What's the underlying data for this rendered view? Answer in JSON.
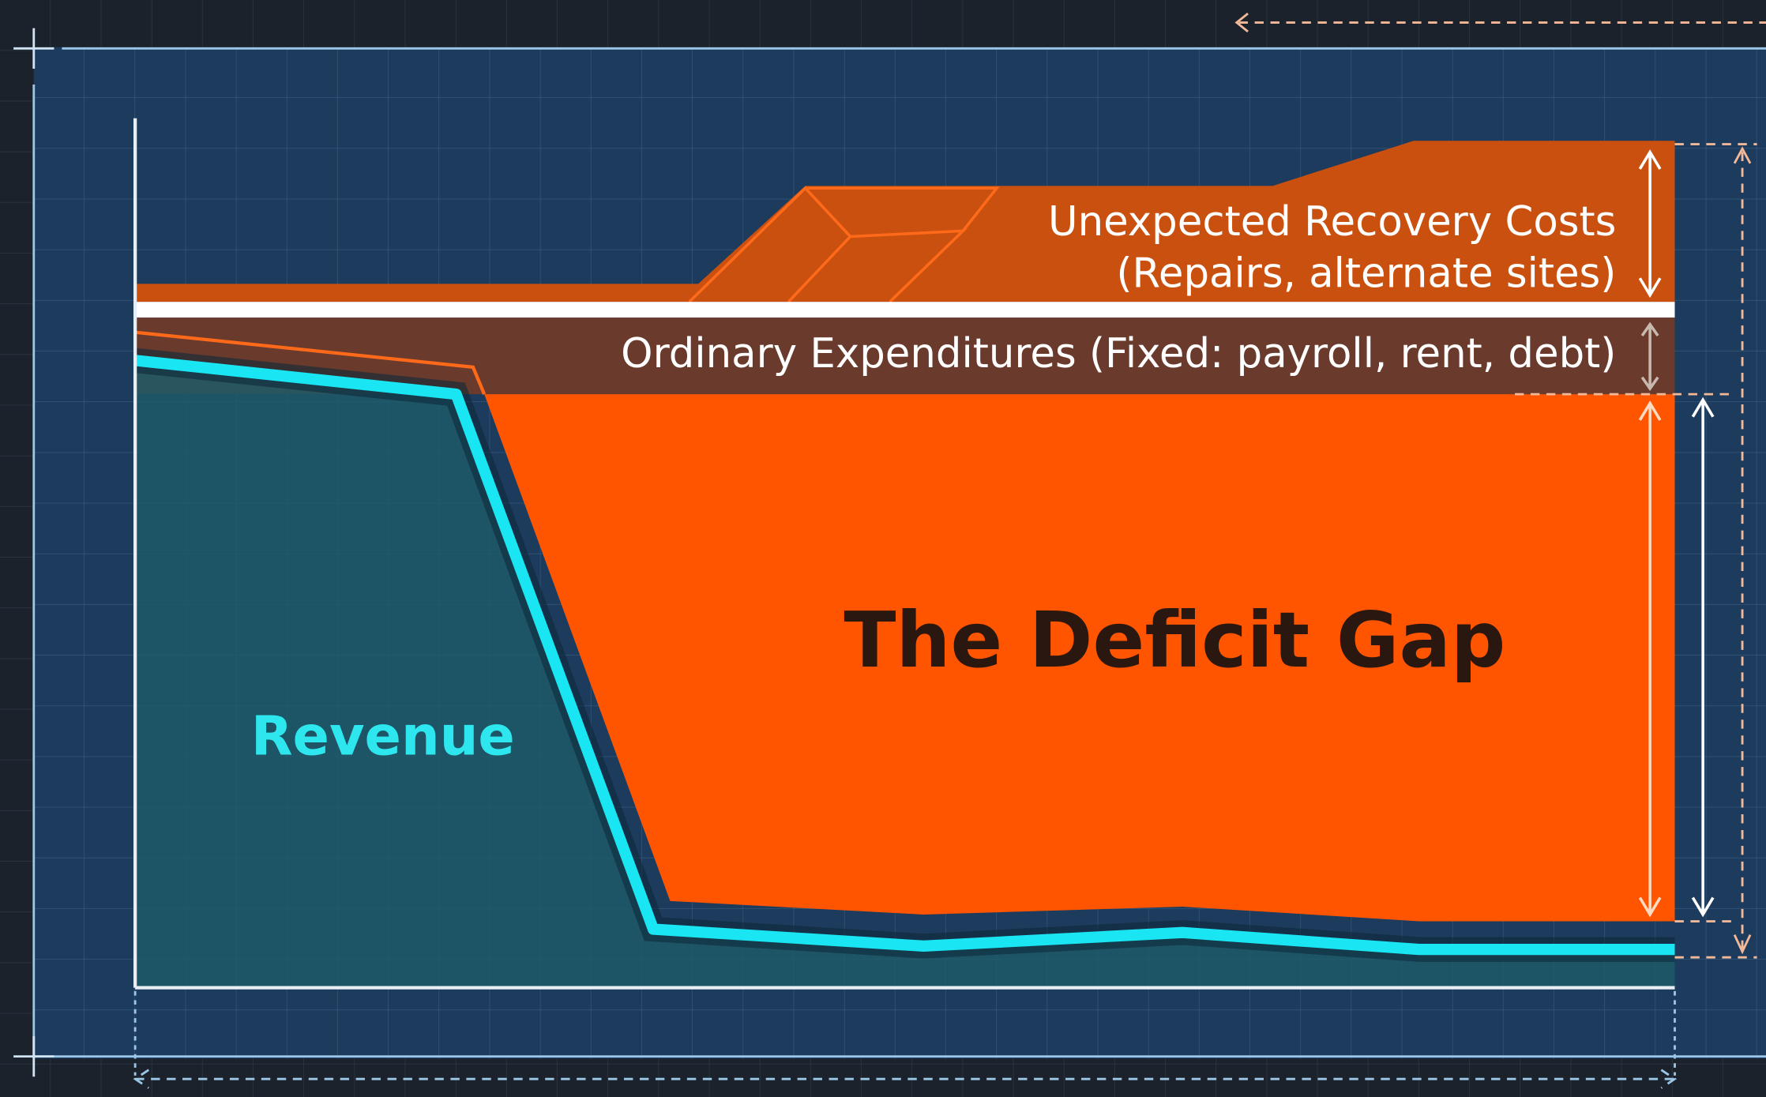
{
  "regions": {
    "recovery": {
      "title": "Unexpected Recovery Costs",
      "subtitle": "(Repairs, alternate sites)"
    },
    "ordinary": {
      "label": "Ordinary Expenditures (Fixed: payroll, rent, debt)"
    },
    "deficit": {
      "label": "The Deficit Gap"
    },
    "revenue": {
      "label": "Revenue"
    }
  }
}
